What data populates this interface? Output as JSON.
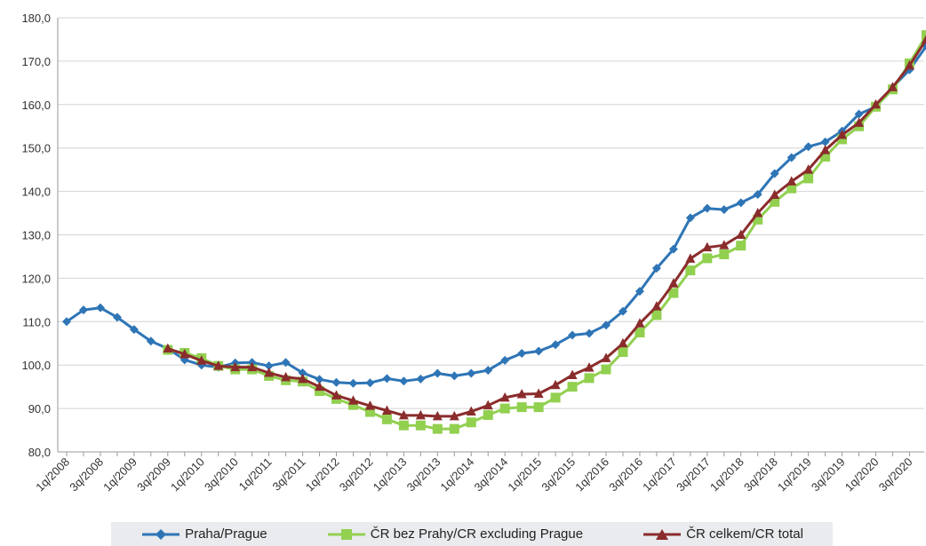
{
  "chart_data": {
    "type": "line",
    "title": "",
    "xlabel": "",
    "ylabel": "",
    "ylim": [
      80,
      180
    ],
    "yticks": [
      "80,0",
      "90,0",
      "100,0",
      "110,0",
      "120,0",
      "130,0",
      "140,0",
      "150,0",
      "160,0",
      "170,0",
      "180,0"
    ],
    "grid": true,
    "legend_position": "bottom",
    "categories": [
      "1q/2008",
      "2q/2008",
      "3q/2008",
      "4q/2008",
      "1q/2009",
      "2q/2009",
      "3q/2009",
      "4q/2009",
      "1q/2010",
      "2q/2010",
      "3q/2010",
      "4q/2010",
      "1q/2011",
      "2q/2011",
      "3q/2011",
      "4q/2011",
      "1q/2012",
      "2q/2012",
      "3q/2012",
      "4q/2012",
      "1q/2013",
      "2q/2013",
      "3q/2013",
      "4q/2013",
      "1q/2014",
      "2q/2014",
      "3q/2014",
      "4q/2014",
      "1q/2015",
      "2q/2015",
      "3q/2015",
      "4q/2015",
      "1q/2016",
      "2q/2016",
      "3q/2016",
      "4q/2016",
      "1q/2017",
      "2q/2017",
      "3q/2017",
      "4q/2017",
      "1q/2018",
      "2q/2018",
      "3q/2018",
      "4q/2018",
      "1q/2019",
      "2q/2019",
      "3q/2019",
      "4q/2019",
      "1q/2020",
      "2q/2020",
      "3q/2020",
      "4q/2020"
    ],
    "xtick_labels": [
      "1q/2008",
      "3q/2008",
      "1q/2009",
      "3q/2009",
      "1q/2010",
      "3q/2010",
      "1q/2011",
      "3q/2011",
      "1q/2012",
      "3q/2012",
      "1q/2013",
      "3q/2013",
      "1q/2014",
      "3q/2014",
      "1q/2015",
      "3q/2015",
      "1q/2016",
      "3q/2016",
      "1q/2017",
      "3q/2017",
      "1q/2018",
      "3q/2018",
      "1q/2019",
      "3q/2019",
      "1q/2020",
      "3q/2020"
    ],
    "series": [
      {
        "name": "Praha/Prague",
        "color": "#2e75b6",
        "marker": "diamond",
        "values": [
          110.0,
          112.7,
          113.2,
          111.0,
          108.2,
          105.5,
          103.8,
          101.2,
          100.0,
          99.5,
          100.5,
          100.6,
          99.8,
          100.6,
          98.2,
          96.7,
          96.0,
          95.8,
          95.9,
          96.9,
          96.3,
          96.8,
          98.1,
          97.5,
          98.1,
          98.8,
          101.1,
          102.7,
          103.2,
          104.7,
          106.9,
          107.3,
          109.2,
          112.4,
          117.0,
          122.3,
          126.7,
          133.9,
          136.1,
          135.8,
          137.4,
          139.3,
          144.1,
          147.8,
          150.3,
          151.4,
          153.9,
          157.8,
          159.5,
          164.0,
          168.0,
          173.5
        ]
      },
      {
        "name": "ČR bez Prahy/CR excluding Prague",
        "color": "#92d050",
        "marker": "square",
        "values": [
          null,
          null,
          null,
          null,
          null,
          null,
          103.5,
          102.8,
          101.6,
          99.8,
          99.0,
          99.0,
          97.5,
          96.5,
          96.2,
          94.0,
          92.2,
          90.8,
          89.2,
          87.5,
          86.1,
          86.1,
          85.3,
          85.3,
          86.8,
          88.5,
          90.0,
          90.3,
          90.3,
          92.5,
          95.0,
          97.0,
          99.0,
          103.0,
          107.5,
          111.5,
          116.6,
          121.8,
          124.6,
          125.5,
          127.5,
          133.5,
          137.6,
          140.7,
          143.0,
          148.0,
          152.0,
          155.0,
          159.5,
          163.5,
          169.5,
          176.0
        ]
      },
      {
        "name": "ČR celkem/CR total",
        "color": "#8b2c2c",
        "marker": "triangle",
        "values": [
          null,
          null,
          null,
          null,
          null,
          null,
          103.8,
          102.5,
          101.0,
          99.8,
          99.5,
          99.5,
          98.2,
          97.2,
          96.8,
          95.0,
          93.0,
          91.8,
          90.6,
          89.5,
          88.4,
          88.4,
          88.2,
          88.2,
          89.3,
          90.7,
          92.5,
          93.3,
          93.4,
          95.4,
          97.7,
          99.4,
          101.6,
          105.0,
          109.6,
          113.5,
          118.8,
          124.5,
          127.1,
          127.6,
          130.0,
          135.0,
          139.2,
          142.3,
          145.0,
          149.5,
          153.0,
          155.8,
          160.0,
          164.0,
          169.0,
          175.0
        ]
      }
    ]
  }
}
